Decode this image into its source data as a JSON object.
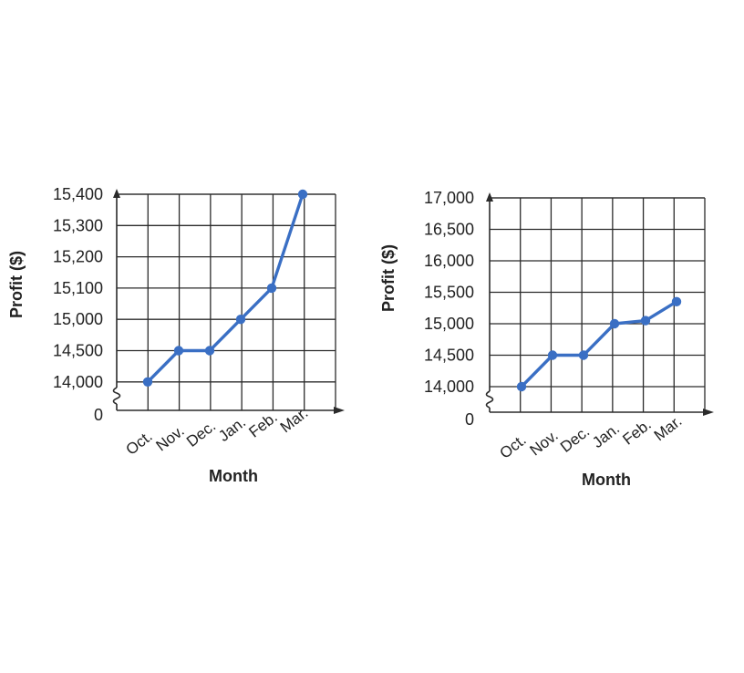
{
  "colors": {
    "series": "#3a6fc4",
    "grid": "#2b2b2b",
    "text": "#222222"
  },
  "chart_data": [
    {
      "type": "line",
      "xlabel": "Month",
      "ylabel": "Profit ($)",
      "categories": [
        "Oct.",
        "Nov.",
        "Dec.",
        "Jan.",
        "Feb.",
        "Mar."
      ],
      "y_tick_labels": [
        "0",
        "14,000",
        "14,500",
        "15,000",
        "15,100",
        "15,200",
        "15,300",
        "15,400"
      ],
      "axis_break": true,
      "grid": true,
      "series": [
        {
          "values": [
            14000,
            14500,
            14500,
            15000,
            15100,
            15400
          ]
        }
      ]
    },
    {
      "type": "line",
      "xlabel": "Month",
      "ylabel": "Profit ($)",
      "categories": [
        "Oct.",
        "Nov.",
        "Dec.",
        "Jan.",
        "Feb.",
        "Mar."
      ],
      "y_tick_labels": [
        "0",
        "14,000",
        "14,500",
        "15,000",
        "15,500",
        "16,000",
        "16,500",
        "17,000"
      ],
      "ylim": [
        14000,
        17000
      ],
      "axis_break": true,
      "grid": true,
      "series": [
        {
          "values": [
            14000,
            14500,
            14500,
            15000,
            15050,
            15350
          ]
        }
      ]
    }
  ]
}
